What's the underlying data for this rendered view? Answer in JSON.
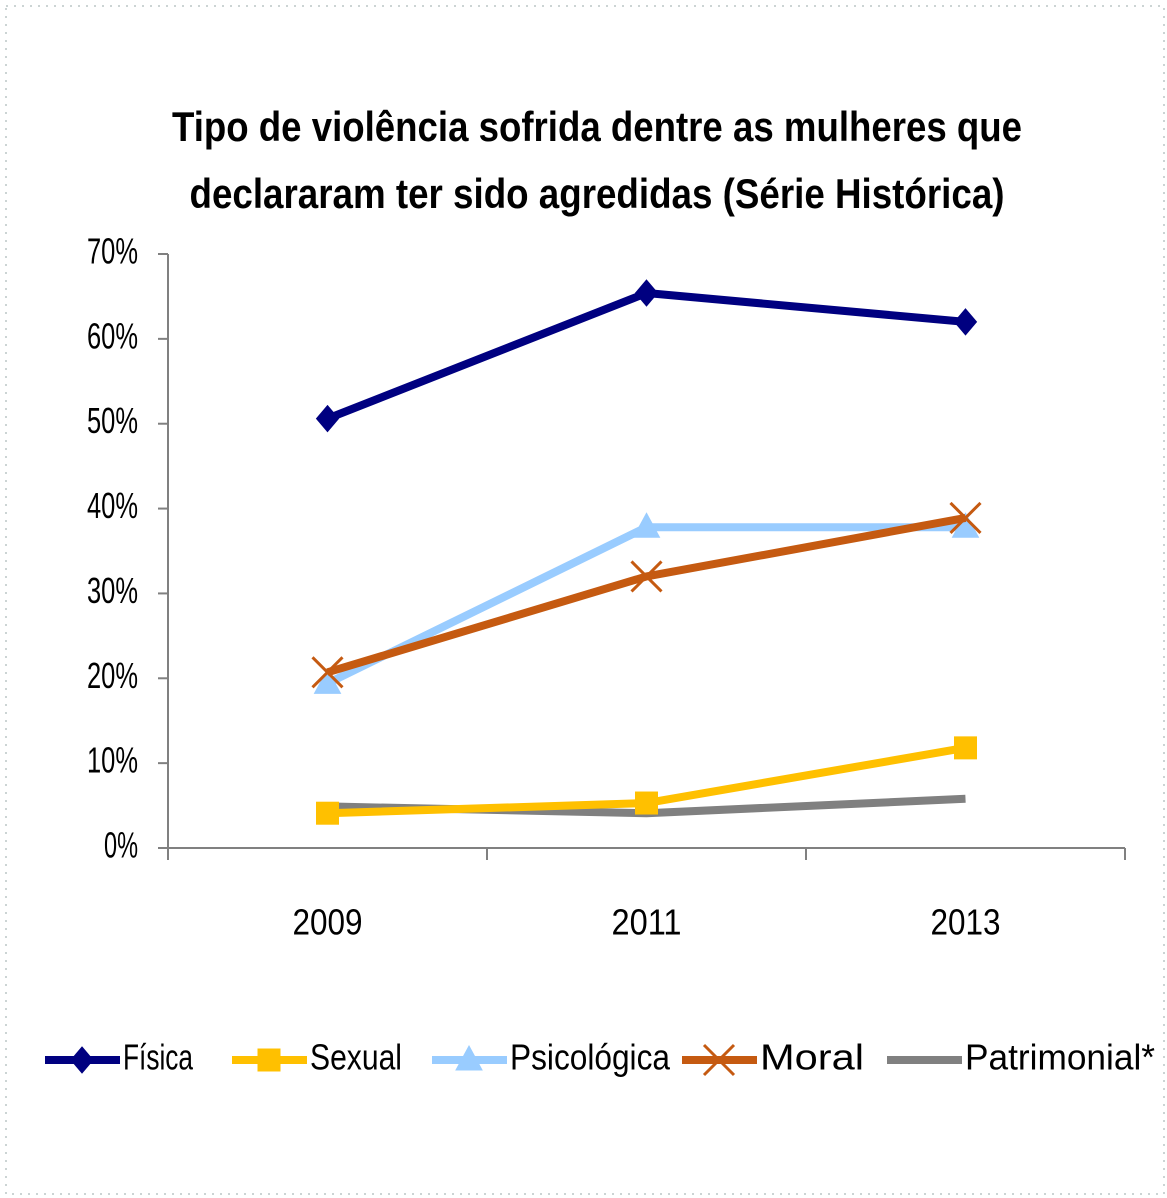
{
  "chart_data": {
    "type": "line",
    "title": [
      "Tipo de violência sofrida dentre as mulheres que",
      "declararam ter sido agredidas (Série Histórica)"
    ],
    "categories": [
      "2009",
      "2011",
      "2013"
    ],
    "series": [
      {
        "name": "Física",
        "color": "#000080",
        "marker": "diamond",
        "values": [
          50.6,
          65.4,
          62
        ]
      },
      {
        "name": "Sexual",
        "color": "#ffc000",
        "marker": "square",
        "values": [
          4.1,
          5.3,
          11.8
        ]
      },
      {
        "name": "Psicológica",
        "color": "#99ccff",
        "marker": "triangle",
        "values": [
          19.4,
          37.8,
          37.8
        ]
      },
      {
        "name": "Moral",
        "color": "#c55a11",
        "marker": "x",
        "values": [
          20.7,
          32,
          38.9
        ]
      },
      {
        "name": "Patrimonial*",
        "color": "#808080",
        "marker": "none",
        "values": [
          4.9,
          4.1,
          5.8
        ]
      }
    ],
    "ylim": [
      0,
      70
    ],
    "yticks": [
      {
        "value": 0,
        "label": "0%"
      },
      {
        "value": 10,
        "label": "10%"
      },
      {
        "value": 20,
        "label": "20%"
      },
      {
        "value": 30,
        "label": "30%"
      },
      {
        "value": 40,
        "label": "40%"
      },
      {
        "value": 50,
        "label": "50%"
      },
      {
        "value": 60,
        "label": "60%"
      },
      {
        "value": 70,
        "label": "70%"
      }
    ],
    "legend": "bottom"
  }
}
